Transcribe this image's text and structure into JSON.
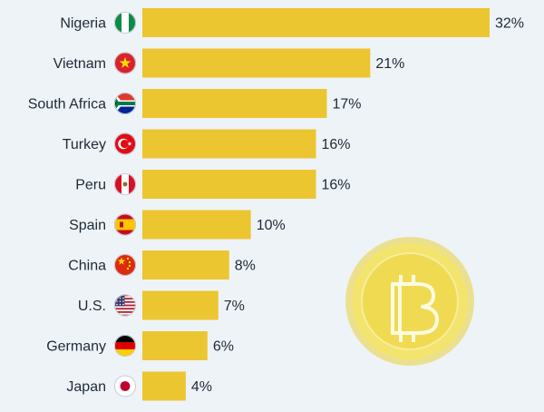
{
  "chart_data": {
    "type": "bar",
    "orientation": "horizontal",
    "categories": [
      "Nigeria",
      "Vietnam",
      "South Africa",
      "Turkey",
      "Peru",
      "Spain",
      "China",
      "U.S.",
      "Germany",
      "Japan"
    ],
    "values": [
      32,
      21,
      17,
      16,
      16,
      10,
      8,
      7,
      6,
      4
    ],
    "value_suffix": "%",
    "xlim": [
      0,
      32
    ],
    "grid": false,
    "legend": "none",
    "bar_color": "#ecc631",
    "background_color": "#eef3f8",
    "flag_icons": [
      "nigeria-flag-icon",
      "vietnam-flag-icon",
      "south-africa-flag-icon",
      "turkey-flag-icon",
      "peru-flag-icon",
      "spain-flag-icon",
      "china-flag-icon",
      "us-flag-icon",
      "germany-flag-icon",
      "japan-flag-icon"
    ],
    "decoration": "bitcoin-coin-icon"
  }
}
